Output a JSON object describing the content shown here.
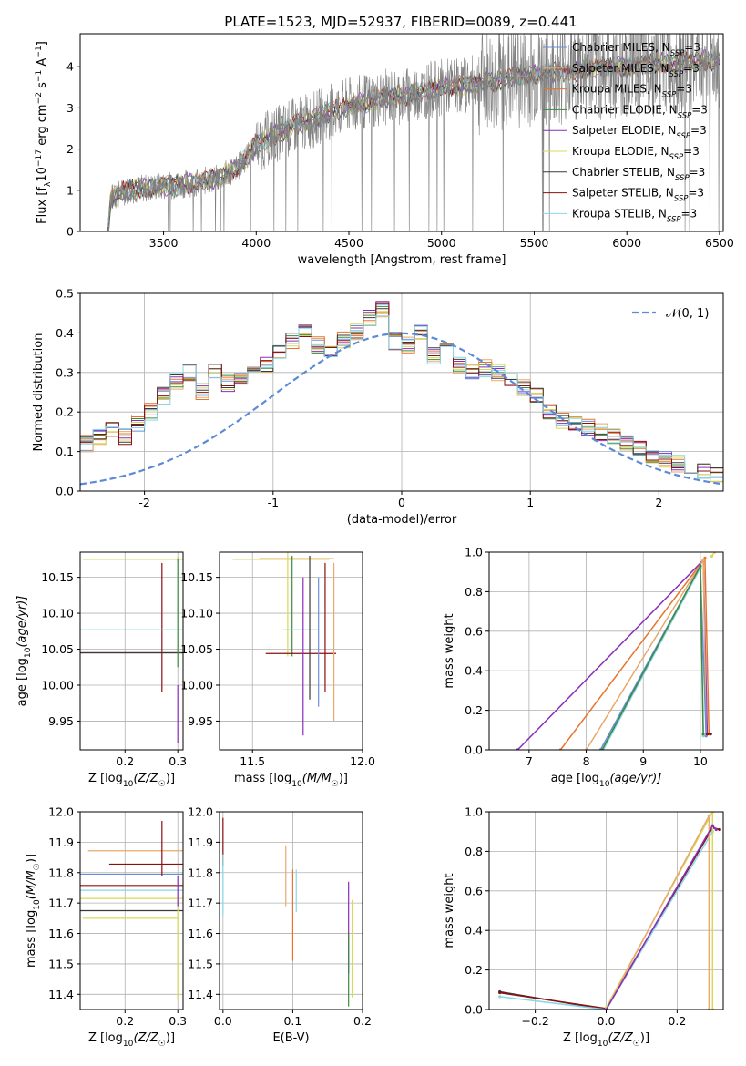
{
  "figure": {
    "title": "PLATE=1523, MJD=52937, FIBERID=0089, z=0.441"
  },
  "models": [
    {
      "label": "Chabrier MILES, N",
      "color": "#6a8fd8"
    },
    {
      "label": "Salpeter MILES, N",
      "color": "#e8a96a"
    },
    {
      "label": "Kroupa MILES, N",
      "color": "#e8742b"
    },
    {
      "label": "Chabrier ELODIE, N",
      "color": "#3d8a3d"
    },
    {
      "label": "Salpeter ELODIE, N",
      "color": "#8a2eb8"
    },
    {
      "label": "Kroupa ELODIE, N",
      "color": "#d8d85a"
    },
    {
      "label": "Chabrier STELIB, N",
      "color": "#3a3a3a"
    },
    {
      "label": "Salpeter STELIB, N",
      "color": "#8b1010"
    },
    {
      "label": "Kroupa STELIB, N",
      "color": "#8ad6e8"
    }
  ],
  "nssp_suffix": "=3",
  "nssp_sub": "SSP",
  "chart_data": [
    {
      "id": "spectrum",
      "type": "line",
      "xlabel": "wavelength [Angstrom, rest frame]",
      "ylabel_parts": {
        "a": "Flux [f",
        "b": "λ",
        "c": "10",
        "d": "−17",
        "e": " erg cm",
        "f": "−2",
        "g": " s",
        "h": "−1",
        "i": " A",
        "j": "−1",
        "k": "]"
      },
      "xlim": [
        3050,
        6520
      ],
      "ylim": [
        0,
        4.8
      ],
      "xticks": [
        3500,
        4000,
        4500,
        5000,
        5500,
        6000,
        6500
      ],
      "yticks": [
        0,
        1,
        2,
        3,
        4
      ],
      "data_color": "#808080",
      "continuum": [
        [
          3200,
          0
        ],
        [
          3215,
          0.8
        ],
        [
          3300,
          1.0
        ],
        [
          3400,
          1.05
        ],
        [
          3500,
          1.1
        ],
        [
          3600,
          1.15
        ],
        [
          3700,
          1.2
        ],
        [
          3800,
          1.3
        ],
        [
          3900,
          1.55
        ],
        [
          4000,
          2.1
        ],
        [
          4100,
          2.35
        ],
        [
          4200,
          2.55
        ],
        [
          4300,
          2.7
        ],
        [
          4400,
          2.9
        ],
        [
          4500,
          3.05
        ],
        [
          4600,
          3.15
        ],
        [
          4700,
          3.25
        ],
        [
          4800,
          3.3
        ],
        [
          4900,
          3.4
        ],
        [
          5000,
          3.5
        ],
        [
          5100,
          3.55
        ],
        [
          5200,
          3.6
        ],
        [
          5300,
          3.65
        ],
        [
          5400,
          3.75
        ],
        [
          5500,
          3.8
        ],
        [
          5600,
          3.85
        ],
        [
          5700,
          3.9
        ],
        [
          5800,
          3.95
        ],
        [
          5900,
          4.0
        ],
        [
          6000,
          4.0
        ],
        [
          6100,
          4.05
        ],
        [
          6200,
          4.1
        ],
        [
          6300,
          4.1
        ],
        [
          6400,
          4.15
        ],
        [
          6500,
          4.15
        ]
      ]
    },
    {
      "id": "residuals",
      "type": "line",
      "xlabel": "(data-model)/error",
      "ylabel": "Normed distribution",
      "xlim": [
        -2.5,
        2.5
      ],
      "ylim": [
        0,
        0.5
      ],
      "xticks": [
        -2,
        -1,
        0,
        1,
        2
      ],
      "yticks": [
        0.0,
        0.1,
        0.2,
        0.3,
        0.4,
        0.5
      ],
      "legend": "𝒩(0, 1)",
      "bin_width": 0.1,
      "hist": [
        0.02,
        0.01,
        0.03,
        0.04,
        0.05,
        0.04,
        0.05,
        0.06,
        0.08,
        0.1,
        0.12,
        0.14,
        0.16,
        0.14,
        0.17,
        0.2,
        0.24,
        0.28,
        0.3,
        0.25,
        0.3,
        0.27,
        0.28,
        0.3,
        0.32,
        0.35,
        0.38,
        0.4,
        0.37,
        0.36,
        0.38,
        0.4,
        0.44,
        0.46,
        0.38,
        0.37,
        0.4,
        0.34,
        0.36,
        0.32,
        0.3,
        0.31,
        0.3,
        0.28,
        0.26,
        0.24,
        0.2,
        0.18,
        0.17,
        0.16,
        0.15,
        0.14,
        0.12,
        0.11,
        0.09,
        0.08,
        0.07,
        0.06,
        0.05,
        0.04,
        0.05,
        0.05,
        0.04,
        0.03,
        0.03,
        0.02,
        0.02,
        0.02,
        0.02,
        0.02
      ]
    },
    {
      "id": "age_vs_Z",
      "type": "scatter",
      "xlabel_parts": {
        "a": "Z [log",
        "b": "10",
        "c": "(Z/Z",
        "d": "☉",
        "e": ")]"
      },
      "ylabel_parts": {
        "a": "age  [log",
        "b": "10",
        "c": "(age/yr)]"
      },
      "xlim": [
        0.115,
        0.31
      ],
      "ylim": [
        9.91,
        10.185
      ],
      "xticks": [
        0.2,
        0.3
      ],
      "yticks": [
        9.95,
        10.0,
        10.05,
        10.1,
        10.15
      ],
      "points": [
        {
          "x": 0.3,
          "y": 10.175,
          "xerr": 0.18,
          "yerr": 0.003,
          "model": 0
        },
        {
          "x": 0.3,
          "y": 10.175,
          "xerr": 0.18,
          "yerr": 0.003,
          "model": 5
        },
        {
          "x": 0.27,
          "y": 10.08,
          "xerr": 0.0,
          "yerr": 0.09,
          "model": 7
        },
        {
          "x": 0.23,
          "y": 10.045,
          "xerr": 0.14,
          "yerr": 0.0,
          "model": 7
        },
        {
          "x": 0.23,
          "y": 10.045,
          "xerr": 0.14,
          "yerr": 0.0,
          "model": 6
        },
        {
          "x": 0.23,
          "y": 10.077,
          "xerr": 0.14,
          "yerr": 0.0,
          "model": 8
        },
        {
          "x": 0.3,
          "y": 9.96,
          "xerr": 0.0,
          "yerr": 0.04,
          "model": 4
        },
        {
          "x": 0.3,
          "y": 10.1,
          "xerr": 0.0,
          "yerr": 0.075,
          "model": 3
        }
      ]
    },
    {
      "id": "age_vs_mass",
      "type": "scatter",
      "xlabel_parts": {
        "a": "mass [log",
        "b": "10",
        "c": "(M/M",
        "d": "☉",
        "e": ")]"
      },
      "xlim": [
        11.35,
        12.0
      ],
      "ylim": [
        9.91,
        10.185
      ],
      "xticks": [
        11.5,
        12.0
      ],
      "yticks": [
        9.95,
        10.0,
        10.05,
        10.1,
        10.15
      ],
      "points": [
        {
          "x": 11.63,
          "y": 10.175,
          "xerr": 0.22,
          "yerr": 0.0,
          "model": 5
        },
        {
          "x": 11.7,
          "y": 10.176,
          "xerr": 0.17,
          "yerr": 0.0,
          "model": 1
        },
        {
          "x": 11.66,
          "y": 10.13,
          "xerr": 0.0,
          "yerr": 0.09,
          "model": 5
        },
        {
          "x": 11.68,
          "y": 10.11,
          "xerr": 0.0,
          "yerr": 0.07,
          "model": 3
        },
        {
          "x": 11.72,
          "y": 10.044,
          "xerr": 0.16,
          "yerr": 0.0,
          "model": 7
        },
        {
          "x": 11.72,
          "y": 10.077,
          "xerr": 0.08,
          "yerr": 0.0,
          "model": 8
        },
        {
          "x": 11.73,
          "y": 10.04,
          "xerr": 0.0,
          "yerr": 0.11,
          "model": 4
        },
        {
          "x": 11.76,
          "y": 10.08,
          "xerr": 0.0,
          "yerr": 0.1,
          "model": 6
        },
        {
          "x": 11.8,
          "y": 10.06,
          "xerr": 0.0,
          "yerr": 0.09,
          "model": 0
        },
        {
          "x": 11.83,
          "y": 10.08,
          "xerr": 0.0,
          "yerr": 0.09,
          "model": 7
        },
        {
          "x": 11.87,
          "y": 10.06,
          "xerr": 0.0,
          "yerr": 0.11,
          "model": 1
        }
      ]
    },
    {
      "id": "massweight_vs_age",
      "type": "line",
      "xlabel_parts": {
        "a": "age  [log",
        "b": "10",
        "c": "(age/yr)]"
      },
      "ylabel": "mass weight",
      "xlim": [
        6.3,
        10.4
      ],
      "ylim": [
        0,
        1.0
      ],
      "xticks": [
        7,
        8,
        9,
        10
      ],
      "yticks": [
        0.0,
        0.2,
        0.4,
        0.6,
        0.8,
        1.0
      ],
      "lines": [
        {
          "model": 4,
          "pts": [
            [
              6.8,
              0.0
            ],
            [
              10.05,
              0.96
            ],
            [
              10.12,
              0.08
            ]
          ]
        },
        {
          "model": 2,
          "pts": [
            [
              7.55,
              0.0
            ],
            [
              10.08,
              0.97
            ],
            [
              10.15,
              0.08
            ]
          ]
        },
        {
          "model": 1,
          "pts": [
            [
              8.0,
              0.0
            ],
            [
              10.05,
              0.96
            ],
            [
              10.1,
              0.07
            ]
          ]
        },
        {
          "model": 0,
          "pts": [
            [
              8.25,
              0.0
            ],
            [
              10.0,
              0.93
            ],
            [
              10.1,
              0.07
            ]
          ]
        },
        {
          "model": 8,
          "pts": [
            [
              8.3,
              0.0
            ],
            [
              10.0,
              0.92
            ],
            [
              10.05,
              0.07
            ]
          ]
        },
        {
          "model": 3,
          "pts": [
            [
              8.28,
              0.0
            ],
            [
              10.0,
              0.93
            ],
            [
              10.05,
              0.08
            ]
          ]
        },
        {
          "model": 5,
          "pts": [
            [
              10.2,
              0.98
            ],
            [
              10.25,
              1.0
            ]
          ]
        },
        {
          "model": 7,
          "pts": [
            [
              10.12,
              0.08
            ],
            [
              10.18,
              0.08
            ]
          ]
        }
      ]
    },
    {
      "id": "mass_vs_Z",
      "type": "scatter",
      "xlabel_parts": {
        "a": "Z [log",
        "b": "10",
        "c": "(Z/Z",
        "d": "☉",
        "e": ")]"
      },
      "ylabel_parts": {
        "a": "mass [log",
        "b": "10",
        "c": "(M/M",
        "d": "☉",
        "e": ")]"
      },
      "xlim": [
        0.115,
        0.31
      ],
      "ylim": [
        11.35,
        12.0
      ],
      "xticks": [
        0.2,
        0.3
      ],
      "yticks": [
        11.4,
        11.5,
        11.6,
        11.7,
        11.8,
        11.9,
        12.0
      ],
      "points": [
        {
          "x": 0.22,
          "y": 11.872,
          "xerr": 0.09,
          "yerr": 0.0,
          "model": 1
        },
        {
          "x": 0.24,
          "y": 11.828,
          "xerr": 0.07,
          "yerr": 0.0,
          "model": 7
        },
        {
          "x": 0.21,
          "y": 11.795,
          "xerr": 0.1,
          "yerr": 0.0,
          "model": 0
        },
        {
          "x": 0.21,
          "y": 11.758,
          "xerr": 0.1,
          "yerr": 0.0,
          "model": 7
        },
        {
          "x": 0.21,
          "y": 11.742,
          "xerr": 0.1,
          "yerr": 0.0,
          "model": 8
        },
        {
          "x": 0.21,
          "y": 11.715,
          "xerr": 0.1,
          "yerr": 0.0,
          "model": 5
        },
        {
          "x": 0.21,
          "y": 11.675,
          "xerr": 0.1,
          "yerr": 0.0,
          "model": 6
        },
        {
          "x": 0.21,
          "y": 11.65,
          "xerr": 0.09,
          "yerr": 0.0,
          "model": 5
        },
        {
          "x": 0.27,
          "y": 11.88,
          "xerr": 0.0,
          "yerr": 0.09,
          "model": 7
        },
        {
          "x": 0.3,
          "y": 11.55,
          "xerr": 0.0,
          "yerr": 0.17,
          "model": 5
        },
        {
          "x": 0.3,
          "y": 11.74,
          "xerr": 0.0,
          "yerr": 0.05,
          "model": 4
        }
      ]
    },
    {
      "id": "mass_vs_ebv",
      "type": "scatter",
      "xlabel": "E(B-V)",
      "xlim": [
        -0.005,
        0.2
      ],
      "ylim": [
        11.35,
        12.0
      ],
      "xticks": [
        0.0,
        0.1,
        0.2
      ],
      "yticks": [
        11.4,
        11.5,
        11.6,
        11.7,
        11.8,
        11.9,
        12.0
      ],
      "points": [
        {
          "x": 0.0,
          "y": 11.9,
          "xerr": 0.0,
          "yerr": 0.08,
          "model": 7
        },
        {
          "x": 0.0,
          "y": 11.76,
          "xerr": 0.0,
          "yerr": 0.1,
          "model": 8
        },
        {
          "x": 0.09,
          "y": 11.79,
          "xerr": 0.0,
          "yerr": 0.1,
          "model": 1
        },
        {
          "x": 0.1,
          "y": 11.66,
          "xerr": 0.0,
          "yerr": 0.15,
          "model": 2
        },
        {
          "x": 0.105,
          "y": 11.74,
          "xerr": 0.0,
          "yerr": 0.07,
          "model": 8
        },
        {
          "x": 0.18,
          "y": 11.62,
          "xerr": 0.0,
          "yerr": 0.15,
          "model": 4
        },
        {
          "x": 0.18,
          "y": 11.48,
          "xerr": 0.0,
          "yerr": 0.12,
          "model": 3
        },
        {
          "x": 0.185,
          "y": 11.55,
          "xerr": 0.0,
          "yerr": 0.16,
          "model": 5
        }
      ]
    },
    {
      "id": "massweight_vs_Z",
      "type": "line",
      "xlabel_parts": {
        "a": "Z [log",
        "b": "10",
        "c": "(Z/Z",
        "d": "☉",
        "e": ")]"
      },
      "ylabel": "mass weight",
      "xlim": [
        -0.33,
        0.33
      ],
      "ylim": [
        0,
        1.0
      ],
      "xticks": [
        -0.2,
        0.0,
        0.2
      ],
      "yticks": [
        0.0,
        0.2,
        0.4,
        0.6,
        0.8,
        1.0
      ],
      "lines": [
        {
          "model": 6,
          "pts": [
            [
              -0.3,
              0.09
            ],
            [
              0.0,
              0.0
            ],
            [
              0.3,
              0.92
            ],
            [
              0.32,
              0.91
            ]
          ]
        },
        {
          "model": 7,
          "pts": [
            [
              -0.3,
              0.085
            ],
            [
              0.0,
              0.005
            ],
            [
              0.3,
              0.92
            ],
            [
              0.32,
              0.91
            ]
          ]
        },
        {
          "model": 8,
          "pts": [
            [
              -0.3,
              0.065
            ],
            [
              0.0,
              0.0
            ],
            [
              0.3,
              0.9
            ]
          ]
        },
        {
          "model": 5,
          "pts": [
            [
              0.0,
              0.01
            ],
            [
              0.3,
              1.0
            ],
            [
              0.3,
              0.0
            ]
          ]
        },
        {
          "model": 1,
          "pts": [
            [
              0.0,
              0.0
            ],
            [
              0.29,
              0.98
            ],
            [
              0.29,
              0.0
            ]
          ]
        },
        {
          "model": 4,
          "pts": [
            [
              0.0,
              0.0
            ],
            [
              0.3,
              0.93
            ],
            [
              0.31,
              0.91
            ]
          ]
        }
      ]
    }
  ]
}
